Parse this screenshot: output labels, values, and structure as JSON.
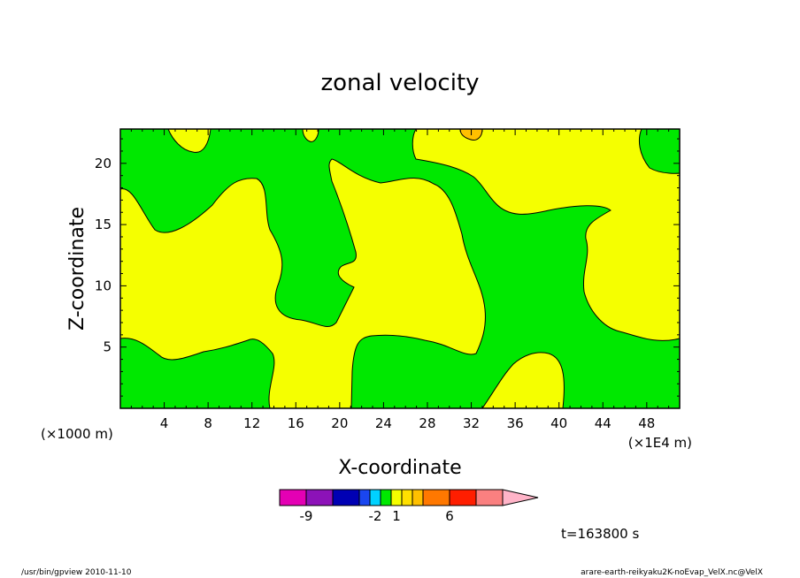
{
  "chart_data": {
    "type": "contour",
    "title": "zonal velocity",
    "xlabel": "X-coordinate",
    "ylabel": "Z-coordinate",
    "xlabel_units": "(×1E4 m)",
    "ylabel_units": "(×1000 m)",
    "xlim": [
      0,
      51
    ],
    "ylim": [
      0,
      22.8
    ],
    "x_ticks": [
      4,
      8,
      12,
      16,
      20,
      24,
      28,
      32,
      36,
      40,
      44,
      48
    ],
    "y_ticks": [
      5,
      10,
      15,
      20
    ],
    "colors": {
      "negative_region": "#00e800",
      "positive_region": "#f5ff00",
      "high_positive_patch": "#ffc000"
    },
    "colorbar": {
      "colors": [
        "#e400b4",
        "#8c12b8",
        "#0000b4",
        "#1a46f0",
        "#00d2ff",
        "#00e800",
        "#f5ff00",
        "#ffe000",
        "#ffc000",
        "#ff7800",
        "#ff1e00",
        "#fa8080",
        "#ffb4c8"
      ],
      "tick_labels": [
        {
          "label": "-9",
          "after_box": 1
        },
        {
          "label": "-2",
          "after_box": 4.5
        },
        {
          "label": "1",
          "after_box": 6.5
        },
        {
          "label": "6",
          "after_box": 10
        }
      ],
      "extend": "max"
    },
    "time_label": "t=163800 s"
  },
  "footer": {
    "left": "/usr/bin/gpview  2010-11-10",
    "right": "arare-earth-reikyaku2K-noEvap_VelX.nc@VelX"
  }
}
